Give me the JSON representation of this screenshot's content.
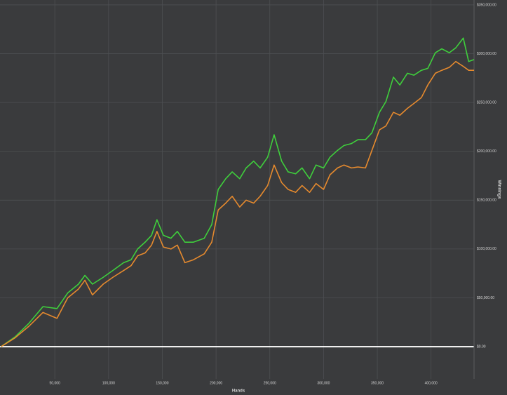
{
  "chart_data": {
    "type": "line",
    "x_label": "Hands",
    "y_label": "Winnings",
    "x": [
      0,
      13000,
      26000,
      39000,
      52000,
      62000,
      72000,
      78000,
      85000,
      95000,
      104000,
      114000,
      121000,
      127000,
      134000,
      140000,
      145000,
      151000,
      158000,
      164000,
      171000,
      179000,
      189000,
      196000,
      202000,
      209000,
      215000,
      222000,
      228000,
      235000,
      241000,
      248000,
      254000,
      261000,
      267000,
      274000,
      280000,
      287000,
      293000,
      300000,
      306000,
      313000,
      319000,
      326000,
      332000,
      339000,
      345000,
      352000,
      358000,
      365000,
      371000,
      378000,
      384000,
      391000,
      397000,
      404000,
      410000,
      417000,
      423000,
      430000,
      435000,
      440000
    ],
    "series": [
      {
        "color": "#3fcf3c",
        "values": [
          0,
          10000,
          24000,
          41000,
          39000,
          55000,
          64000,
          73000,
          64000,
          71000,
          78000,
          86000,
          89000,
          100000,
          107000,
          114000,
          130000,
          114000,
          111000,
          118000,
          107000,
          107000,
          111000,
          125000,
          161000,
          172000,
          179000,
          172000,
          183000,
          190000,
          183000,
          194000,
          217000,
          190000,
          179000,
          177000,
          183000,
          172000,
          186000,
          183000,
          194000,
          201000,
          206000,
          208000,
          212000,
          212000,
          219000,
          240000,
          251000,
          276000,
          268000,
          280000,
          278000,
          283000,
          285000,
          301000,
          305000,
          301000,
          306000,
          316000,
          292000,
          294000
        ]
      },
      {
        "color": "#e68a2e",
        "values": [
          0,
          9000,
          21000,
          35000,
          29000,
          50000,
          59000,
          68000,
          53000,
          64000,
          71000,
          78000,
          83000,
          93000,
          96000,
          104000,
          118000,
          102000,
          100000,
          104000,
          86000,
          89000,
          95000,
          107000,
          140000,
          147000,
          154000,
          143000,
          150000,
          147000,
          154000,
          165000,
          186000,
          168000,
          161000,
          158000,
          165000,
          158000,
          167000,
          161000,
          176000,
          183000,
          186000,
          183000,
          184000,
          183000,
          201000,
          222000,
          226000,
          240000,
          237000,
          244000,
          249000,
          255000,
          268000,
          280000,
          283000,
          286000,
          292000,
          287000,
          283000,
          283000
        ]
      }
    ],
    "xlim": [
      -1000,
      440000
    ],
    "ylim": [
      -33000,
      355000
    ],
    "xticks": [
      {
        "value": 50000,
        "label": "50,000"
      },
      {
        "value": 100000,
        "label": "100,000"
      },
      {
        "value": 150000,
        "label": "150,000"
      },
      {
        "value": 200000,
        "label": "200,000"
      },
      {
        "value": 250000,
        "label": "250,000"
      },
      {
        "value": 300000,
        "label": "300,000"
      },
      {
        "value": 350000,
        "label": "350,000"
      },
      {
        "value": 400000,
        "label": "400,000"
      }
    ],
    "yticks": [
      {
        "value": 0,
        "label": "$0.00"
      },
      {
        "value": 50000,
        "label": "$50,000.00"
      },
      {
        "value": 100000,
        "label": "$100,000.00"
      },
      {
        "value": 150000,
        "label": "$150,000.00"
      },
      {
        "value": 200000,
        "label": "$200,000.00"
      },
      {
        "value": 250000,
        "label": "$250,000.00"
      },
      {
        "value": 300000,
        "label": "$300,000.00"
      },
      {
        "value": 350000,
        "label": "$350,000.00"
      }
    ],
    "grid": true
  }
}
